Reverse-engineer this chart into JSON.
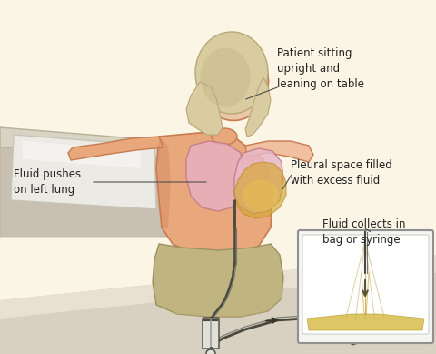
{
  "background_color": "#faf5e4",
  "labels": {
    "patient_sitting": "Patient sitting\nupright and\nleaning on table",
    "pleural_space": "Pleural space filled\nwith excess fluid",
    "fluid_pushes": "Fluid pushes\non left lung",
    "fluid_collects": "Fluid collects in\nbag or syringe"
  },
  "colors": {
    "skin": "#e8a87c",
    "skin_shadow": "#c97a50",
    "skin_light": "#f0c0a0",
    "lung_pink": "#e8a0b0",
    "lung_pink2": "#d48090",
    "fluid_yellow": "#d4a830",
    "fluid_yellow_light": "#e8c870",
    "hair_light": "#d8cca0",
    "hair_dark": "#b8a878",
    "pants": "#c0b480",
    "pants_dark": "#a09060",
    "bed_top": "#ddd8c8",
    "bed_shadow": "#c0b8a0",
    "pillow": "#e8e4dc",
    "pillow_shadow": "#c8c4b8",
    "tube": "#484840",
    "tube_light": "#787870",
    "syringe_body": "#e0e0d8",
    "bag_bg": "#f0f0ec",
    "bag_fluid_yellow": "#c8b848",
    "inset_border": "#909090",
    "text": "#222222",
    "line": "#505050"
  },
  "fontsize": 8.5
}
